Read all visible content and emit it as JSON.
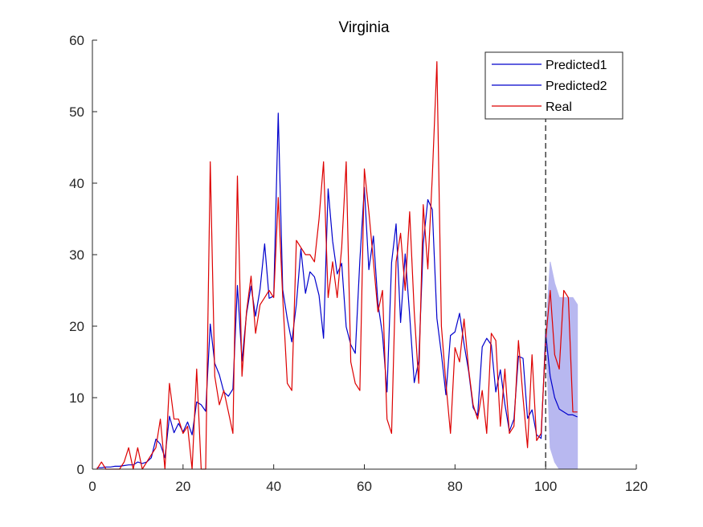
{
  "chart_data": {
    "type": "line",
    "title": "Virginia",
    "xlabel": "",
    "ylabel": "",
    "xlim": [
      0,
      120
    ],
    "ylim": [
      0,
      60
    ],
    "xticks": [
      0,
      20,
      40,
      60,
      80,
      100,
      120
    ],
    "yticks": [
      0,
      10,
      20,
      30,
      40,
      50,
      60
    ],
    "grid": false,
    "legend_placement": "top-right",
    "forecast_start": 100,
    "series": [
      {
        "name": "Predicted1",
        "color": "#0000cc",
        "x": [
          1,
          2,
          3,
          4,
          5,
          6,
          7,
          8,
          9,
          10,
          11,
          12,
          13,
          14,
          15,
          16,
          17,
          18,
          19,
          20,
          21,
          22,
          23,
          24,
          25,
          26,
          27,
          28,
          29,
          30,
          31,
          32,
          33,
          34,
          35,
          36,
          37,
          38,
          39,
          40,
          41,
          42,
          43,
          44,
          45,
          46,
          47,
          48,
          49,
          50,
          51,
          52,
          53,
          54,
          55,
          56,
          57,
          58,
          59,
          60,
          61,
          62,
          63,
          64,
          65,
          66,
          67,
          68,
          69,
          70,
          71,
          72,
          73,
          74,
          75,
          76,
          77,
          78,
          79,
          80,
          81,
          82,
          83,
          84,
          85,
          86,
          87,
          88,
          89,
          90,
          91,
          92,
          93,
          94,
          95,
          96,
          97,
          98,
          99,
          100
        ],
        "y": [
          0.2,
          0.2,
          0.3,
          0.3,
          0.4,
          0.4,
          0.5,
          0.6,
          0.6,
          1.0,
          0.8,
          1.0,
          1.6,
          4.2,
          3.5,
          1.6,
          7.4,
          5.1,
          6.4,
          5.2,
          6.6,
          4.8,
          9.4,
          9.0,
          8.1,
          20.3,
          14.8,
          13.2,
          10.8,
          10.2,
          11.2,
          25.7,
          15.1,
          21.7,
          25.6,
          21.4,
          25.2,
          31.5,
          23.9,
          24.2,
          49.8,
          25.1,
          21.0,
          17.8,
          23.1,
          30.8,
          24.6,
          27.6,
          26.9,
          24.3,
          18.3,
          39.2,
          31.9,
          27.3,
          28.8,
          19.9,
          17.4,
          16.2,
          29.2,
          39.4,
          27.9,
          32.6,
          23.2,
          18.8,
          10.8,
          28.9,
          34.3,
          20.5,
          30.1,
          21.5,
          12.1,
          15.1,
          31.5,
          37.7,
          36.3,
          21.1,
          16.1,
          10.4,
          18.7,
          19.2,
          21.8,
          17.5,
          13.7,
          8.6,
          7.5,
          17.1,
          18.3,
          17.4,
          10.8,
          13.9,
          9.1,
          5.3,
          7.0,
          15.8,
          15.5,
          7.1,
          8.3,
          4.8,
          4.3,
          19.0
        ]
      },
      {
        "name": "Predicted2",
        "color": "#0000cc",
        "x": [
          100,
          101,
          102,
          103,
          104,
          105,
          106,
          107
        ],
        "y": [
          19.0,
          13.0,
          10.0,
          8.4,
          8.0,
          7.6,
          7.6,
          7.3
        ],
        "band_upper": [
          19.0,
          29.0,
          26.0,
          24.0,
          24.0,
          24.0,
          24.0,
          23.0
        ],
        "band_lower": [
          19.0,
          3.0,
          1.0,
          0.0,
          0.0,
          0.0,
          0.0,
          0.0
        ],
        "band_color": "#b8b8f0"
      },
      {
        "name": "Real",
        "color": "#dd0000",
        "x": [
          1,
          2,
          3,
          4,
          5,
          6,
          7,
          8,
          9,
          10,
          11,
          12,
          13,
          14,
          15,
          16,
          17,
          18,
          19,
          20,
          21,
          22,
          23,
          24,
          25,
          26,
          27,
          28,
          29,
          30,
          31,
          32,
          33,
          34,
          35,
          36,
          37,
          38,
          39,
          40,
          41,
          42,
          43,
          44,
          45,
          46,
          47,
          48,
          49,
          50,
          51,
          52,
          53,
          54,
          55,
          56,
          57,
          58,
          59,
          60,
          61,
          62,
          63,
          64,
          65,
          66,
          67,
          68,
          69,
          70,
          71,
          72,
          73,
          74,
          75,
          76,
          77,
          78,
          79,
          80,
          81,
          82,
          83,
          84,
          85,
          86,
          87,
          88,
          89,
          90,
          91,
          92,
          93,
          94,
          95,
          96,
          97,
          98,
          99,
          100,
          101,
          102,
          103,
          104,
          105,
          106,
          107
        ],
        "y": [
          0,
          1,
          0,
          0,
          0,
          0,
          1,
          3,
          0,
          3,
          0,
          1,
          2,
          3,
          7,
          0,
          12,
          7,
          7,
          5,
          6,
          0,
          14,
          0,
          0,
          43,
          13,
          9,
          11,
          8,
          5,
          41,
          13,
          22,
          27,
          19,
          23,
          24,
          25,
          24,
          38,
          24,
          12,
          11,
          32,
          31,
          30,
          30,
          29,
          35,
          43,
          24,
          29,
          24,
          31,
          43,
          15,
          12,
          11,
          42,
          36,
          29,
          22,
          25,
          7,
          5,
          29,
          33,
          25,
          36,
          22,
          12,
          37,
          28,
          41,
          57,
          20,
          12,
          5,
          17,
          15,
          21,
          14,
          9,
          7,
          11,
          5,
          19,
          18,
          6,
          14,
          5,
          6,
          18,
          10,
          3,
          16,
          4,
          5,
          18,
          25,
          16,
          14,
          25,
          24,
          8,
          8
        ]
      }
    ]
  }
}
